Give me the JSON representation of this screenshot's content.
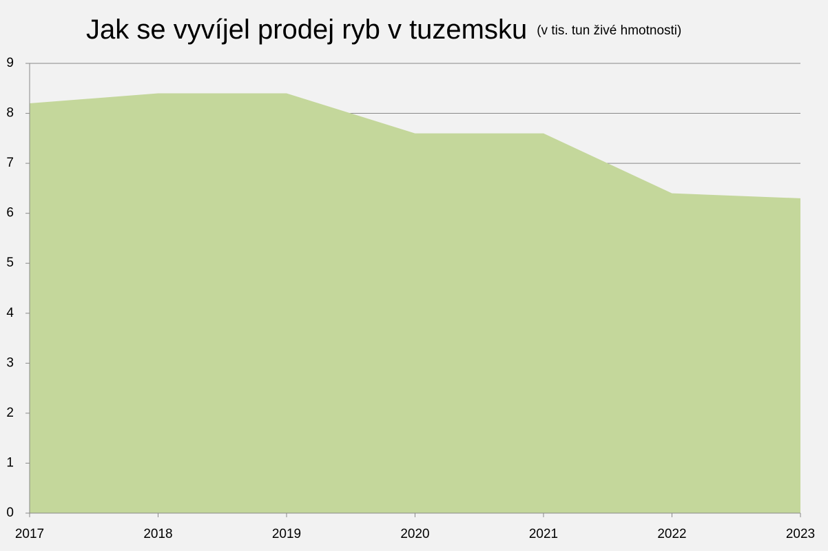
{
  "chart_data": {
    "type": "area",
    "title": "Jak se vyvíjel prodej ryb v tuzemsku",
    "subtitle": "(v tis. tun živé hmotnosti)",
    "x": [
      2017,
      2018,
      2019,
      2020,
      2021,
      2022,
      2023
    ],
    "values": [
      8.2,
      8.4,
      8.4,
      7.6,
      7.6,
      6.4,
      6.3
    ],
    "color": "#c4d79b",
    "xlim": [
      2017,
      2023
    ],
    "xticks": [
      2017,
      2018,
      2019,
      2020,
      2021,
      2022,
      2023
    ],
    "ylim": [
      0,
      9
    ],
    "yticks": [
      0,
      1,
      2,
      3,
      4,
      5,
      6,
      7,
      8,
      9
    ],
    "grid": true
  }
}
